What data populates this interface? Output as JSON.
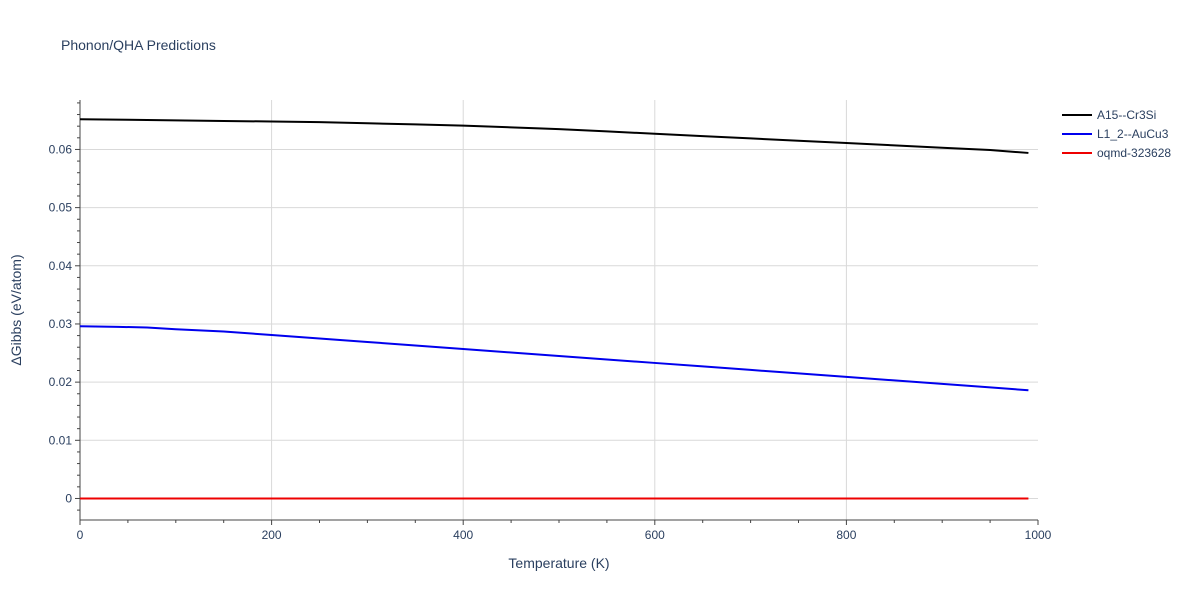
{
  "chart_data": {
    "type": "line",
    "title": "Phonon/QHA Predictions",
    "xlabel": "Temperature (K)",
    "ylabel": "ΔGibbs (eV/atom)",
    "xlim": [
      0,
      1000
    ],
    "ylim": [
      -0.0037,
      0.0685
    ],
    "x_ticks": [
      0,
      200,
      400,
      600,
      800,
      1000
    ],
    "x_tick_labels": [
      "0",
      "200",
      "400",
      "600",
      "800",
      "1000"
    ],
    "y_ticks": [
      0,
      0.01,
      0.02,
      0.03,
      0.04,
      0.05,
      0.06
    ],
    "y_tick_labels": [
      "0",
      "0.01",
      "0.02",
      "0.03",
      "0.04",
      "0.05",
      "0.06"
    ],
    "grid": true,
    "legend_position": "top-right",
    "series": [
      {
        "name": "A15--Cr3Si",
        "color": "#000000",
        "x": [
          0,
          50,
          100,
          150,
          200,
          250,
          300,
          350,
          400,
          450,
          500,
          550,
          600,
          650,
          700,
          750,
          800,
          850,
          900,
          950,
          990
        ],
        "y": [
          0.0652,
          0.0651,
          0.065,
          0.0649,
          0.0648,
          0.0647,
          0.0645,
          0.0643,
          0.0641,
          0.0638,
          0.0635,
          0.0631,
          0.0627,
          0.0623,
          0.0619,
          0.0615,
          0.0611,
          0.0607,
          0.0603,
          0.0599,
          0.0594
        ]
      },
      {
        "name": "L1_2--AuCu3",
        "color": "#0000ee",
        "x": [
          0,
          40,
          70,
          100,
          150,
          200,
          250,
          300,
          350,
          400,
          450,
          500,
          550,
          600,
          650,
          700,
          750,
          800,
          850,
          900,
          950,
          990
        ],
        "y": [
          0.0296,
          0.0295,
          0.0294,
          0.0291,
          0.0287,
          0.0281,
          0.0275,
          0.0269,
          0.0263,
          0.0257,
          0.0251,
          0.0245,
          0.0239,
          0.0233,
          0.0227,
          0.0221,
          0.0215,
          0.0209,
          0.0203,
          0.0197,
          0.0191,
          0.0186
        ]
      },
      {
        "name": "oqmd-323628",
        "color": "#ee0000",
        "x": [
          0,
          990
        ],
        "y": [
          0,
          0
        ]
      }
    ]
  }
}
